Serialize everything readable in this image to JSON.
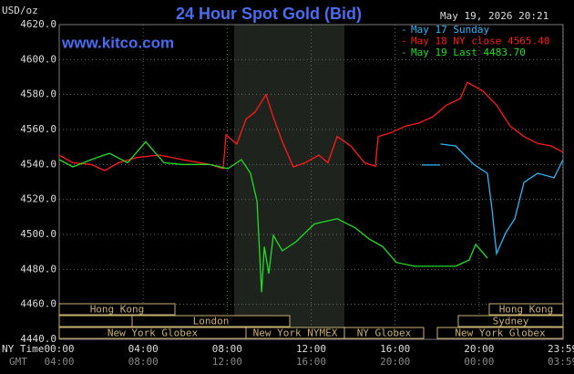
{
  "chart_data": {
    "type": "line",
    "title": "24 Hour Spot Gold (Bid)",
    "y_unit": "USD/oz",
    "timestamp": "May 19, 2026 20:21",
    "website": "www.kitco.com",
    "x_row_labels": [
      "NY Time",
      "GMT"
    ],
    "xlim": [
      0,
      24
    ],
    "ylim": [
      4440,
      4620
    ],
    "xticks": [
      {
        "value": 0,
        "label": "00:00"
      },
      {
        "value": 4,
        "label": "04:00"
      },
      {
        "value": 8,
        "label": "08:00"
      },
      {
        "value": 12,
        "label": "12:00"
      },
      {
        "value": 16,
        "label": "16:00"
      },
      {
        "value": 20,
        "label": "20:00"
      },
      {
        "value": 23.98,
        "label": "23:59"
      }
    ],
    "gmt_ticks": [
      "04:00",
      "08:00",
      "12:00",
      "16:00",
      "20:00",
      "00:00",
      "03:59"
    ],
    "yticks": [
      {
        "value": 4620,
        "label": "4620.0"
      },
      {
        "value": 4600,
        "label": "4600.0"
      },
      {
        "value": 4580,
        "label": "4580.0"
      },
      {
        "value": 4560,
        "label": "4560.0"
      },
      {
        "value": 4540,
        "label": "4540.0"
      },
      {
        "value": 4520,
        "label": "4520.0"
      },
      {
        "value": 4500,
        "label": "4500.0"
      },
      {
        "value": 4480,
        "label": "4480.0"
      },
      {
        "value": 4460,
        "label": "4460.0"
      },
      {
        "value": 4440,
        "label": "4440.0"
      }
    ],
    "grid": true,
    "sessions": [
      "Hong Kong",
      "London",
      "New York Globex",
      "New York NYMEX",
      "NY Globex",
      "Hong Kong",
      "Sydney",
      "New York Globex"
    ],
    "series": [
      {
        "name": "May 17 Sunday",
        "color": "#29b6f6",
        "x": [
          17.27,
          18.14,
          18.15,
          18.16,
          18.88,
          19.75,
          20.4,
          20.62,
          20.83,
          21.27,
          21.7,
          22.14,
          22.79,
          23.57,
          24
        ],
        "values": [
          4539.7,
          4539.7,
          null,
          4551.7,
          4550.6,
          4540,
          4534.9,
          4514,
          4489,
          4501,
          4509,
          4529.8,
          4535,
          4532.4,
          4542.8
        ]
      },
      {
        "name": "May 18 NY close 4565.40",
        "color": "#ff1a1a",
        "x": [
          0,
          0.65,
          1.52,
          2.17,
          2.82,
          3.69,
          4.77,
          5.86,
          7.16,
          7.81,
          7.94,
          8.46,
          8.9,
          9.33,
          9.85,
          10.2,
          10.63,
          11.15,
          11.72,
          12.37,
          12.8,
          13.24,
          13.89,
          14.54,
          15.06,
          15.19,
          15.84,
          16.49,
          17.14,
          17.8,
          18.45,
          19.1,
          19.44,
          20.18,
          20.83,
          21.48,
          22.14,
          22.79,
          23.44,
          24
        ],
        "values": [
          4545.4,
          4541,
          4540,
          4536.5,
          4541,
          4544,
          4545.4,
          4542.8,
          4540,
          4537.6,
          4557,
          4551.7,
          4566,
          4570,
          4580,
          4567,
          4553,
          4538.6,
          4541,
          4545.4,
          4541,
          4556,
          4550.6,
          4541,
          4539,
          4556,
          4558.4,
          4562,
          4563.7,
          4567.3,
          4574,
          4577.7,
          4587,
          4582,
          4574,
          4562,
          4556,
          4552,
          4550.6,
          4547
        ]
      },
      {
        "name": "May 19 Last 4483.70",
        "color": "#22dd22",
        "x": [
          0,
          0.65,
          1.52,
          2.39,
          3.26,
          4.12,
          4.99,
          5.86,
          7.16,
          8.03,
          8.68,
          9.11,
          9.42,
          9.64,
          9.77,
          9.98,
          10.2,
          10.63,
          11.28,
          12.15,
          13.24,
          14.11,
          14.76,
          15.41,
          16.06,
          16.93,
          18.01,
          18.88,
          19.53,
          19.84,
          20.4
        ],
        "values": [
          4542.8,
          4538.6,
          4542.8,
          4546.4,
          4541,
          4553,
          4541,
          4540,
          4540,
          4537.6,
          4542.8,
          4535,
          4519,
          4467,
          4493,
          4477.6,
          4499.5,
          4490.6,
          4495.8,
          4506,
          4509,
          4503.7,
          4497.4,
          4493,
          4484,
          4481.8,
          4481.8,
          4481.8,
          4485.4,
          4494.3,
          4486.5
        ]
      }
    ]
  }
}
